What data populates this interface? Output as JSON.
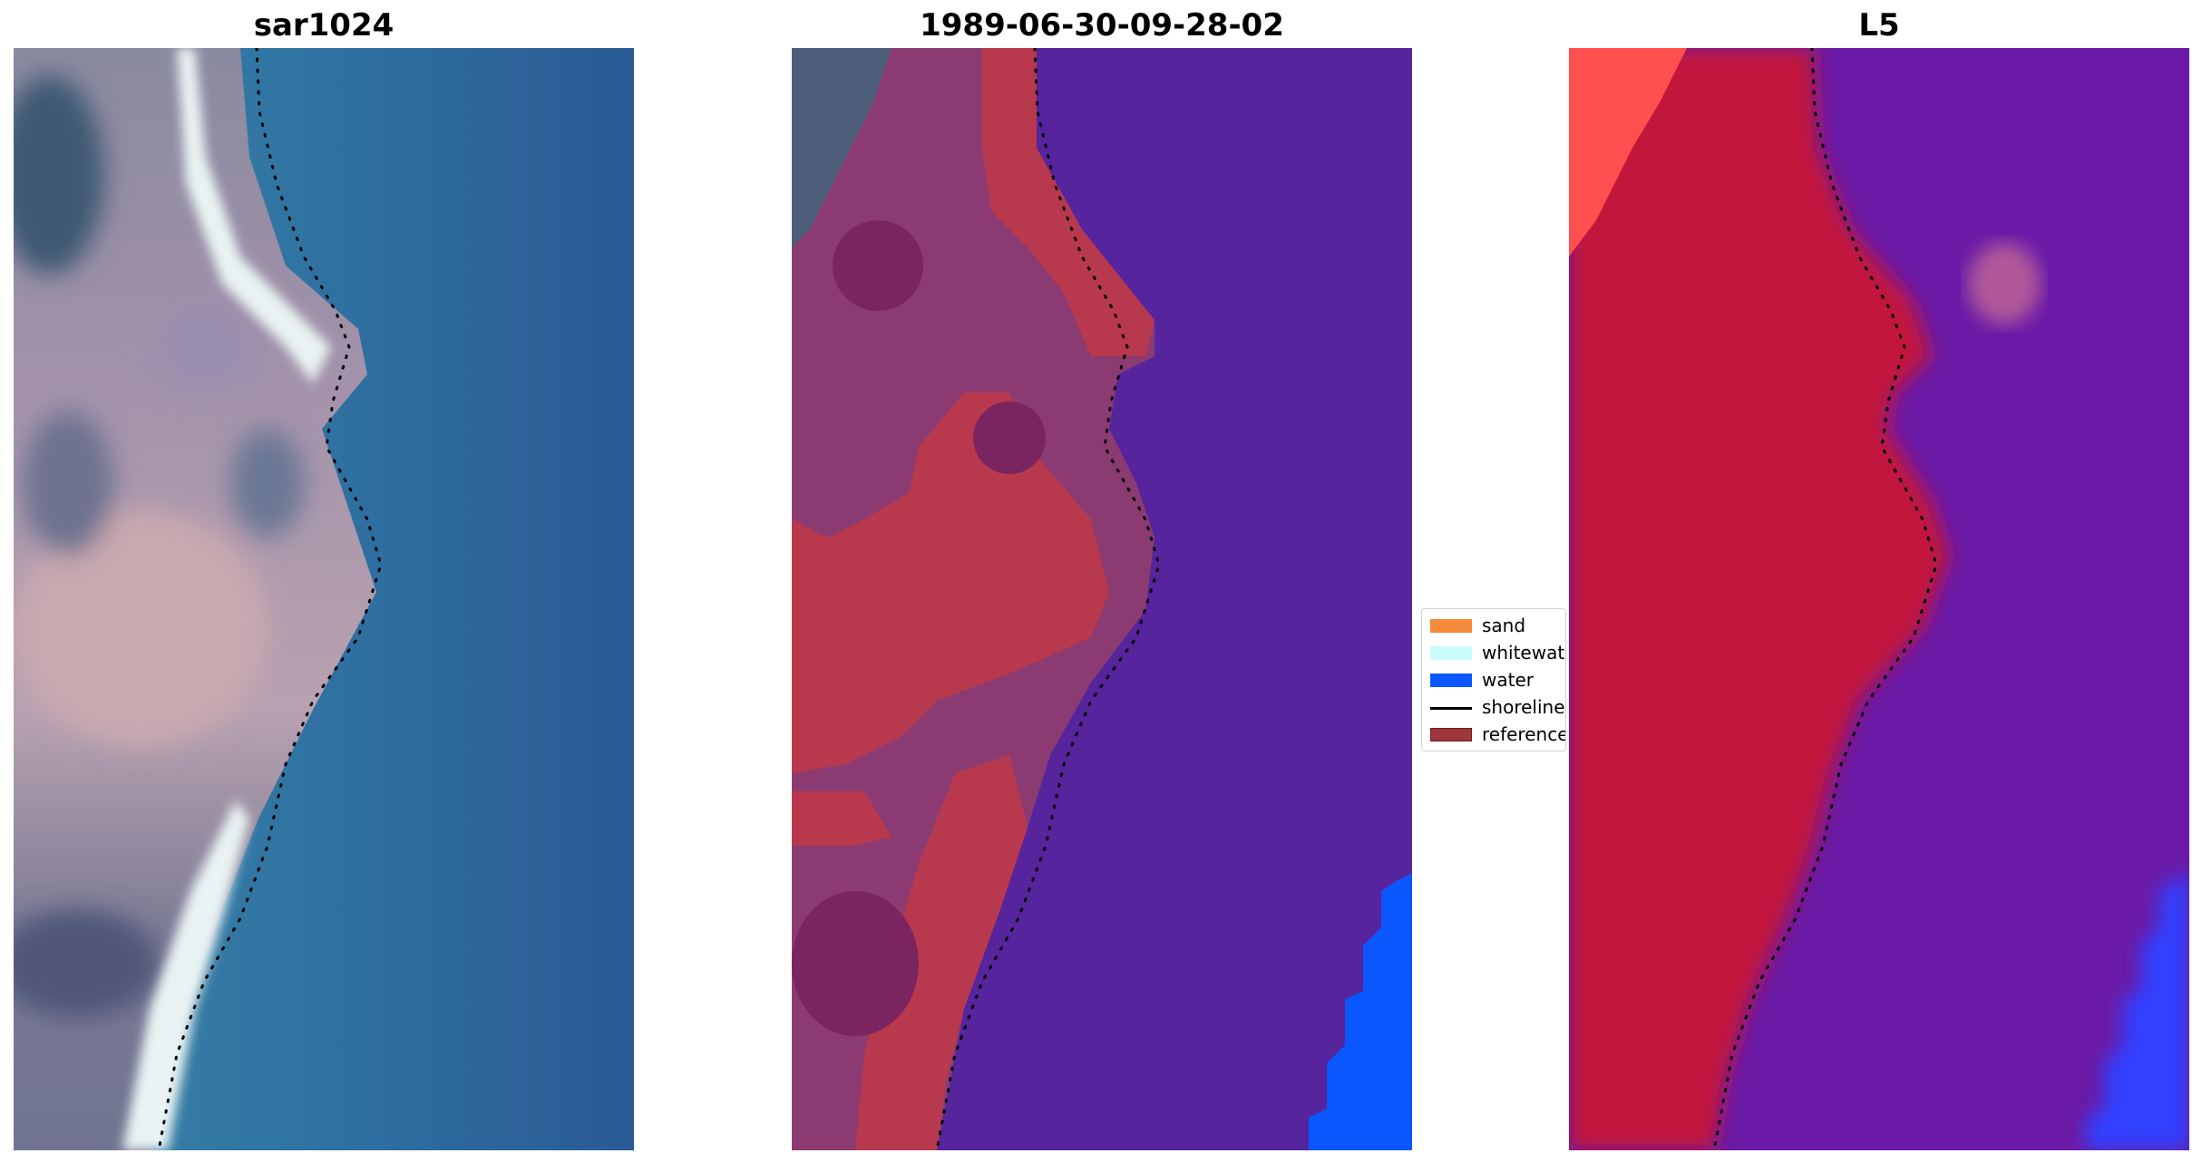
{
  "panels": [
    {
      "title": "sar1024"
    },
    {
      "title": "1989-06-30-09-28-02"
    },
    {
      "title": "L5"
    }
  ],
  "legend": {
    "items": [
      {
        "label": "sand",
        "color": "#f58a3b",
        "kind": "patch"
      },
      {
        "label": "whitewater",
        "color": "#ccfbfb",
        "kind": "patch"
      },
      {
        "label": "water",
        "color": "#0a57ff",
        "kind": "patch"
      },
      {
        "label": "shoreline",
        "color": "#000000",
        "kind": "line"
      },
      {
        "label": "reference",
        "color": "#a0353a",
        "kind": "patch"
      }
    ]
  },
  "colors": {
    "rgb_water": "#2f6f9f",
    "rgb_land": "#9a8ea8",
    "rgb_surf": "#e8f2f2",
    "class_water_overlay": "#56249c",
    "class_reference": "#b8394d",
    "class_land": "#8c3b72",
    "class_water_blue": "#0a57ff",
    "l5_land": "#c2143e",
    "l5_water": "#6a1aa6",
    "l5_corner": "#ff5050",
    "l5_blue": "#3040ff"
  }
}
